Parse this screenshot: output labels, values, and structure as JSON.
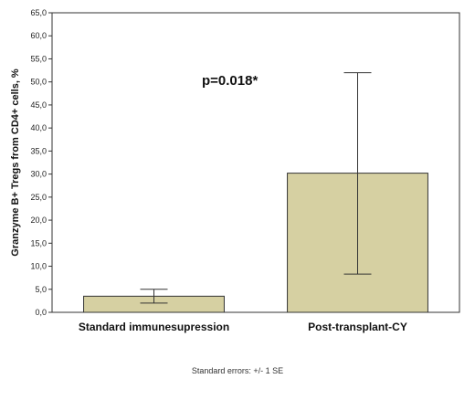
{
  "chart_data": {
    "type": "bar",
    "categories": [
      "Standard immunesupression",
      "Post-transplant-CY"
    ],
    "values": [
      3.5,
      30.2
    ],
    "error_bars": {
      "lower": [
        2.0,
        8.3
      ],
      "upper": [
        5.0,
        52.0
      ]
    },
    "ylabel": "Granzyme B+ Tregs from CD4+ cells, %",
    "xlabel": "",
    "ylim": [
      0,
      65
    ],
    "yticks": [
      "0,0",
      "5,0",
      "10,0",
      "15,0",
      "20,0",
      "25,0",
      "30,0",
      "35,0",
      "40,0",
      "45,0",
      "50,0",
      "55,0",
      "60,0",
      "65,0"
    ],
    "annotation": "p=0.018*",
    "footnote": "Standard errors: +/- 1 SE",
    "grid": false,
    "colors": {
      "bar_fill": "#d6d0a2",
      "bar_stroke": "#333333",
      "axis": "#333333"
    }
  }
}
